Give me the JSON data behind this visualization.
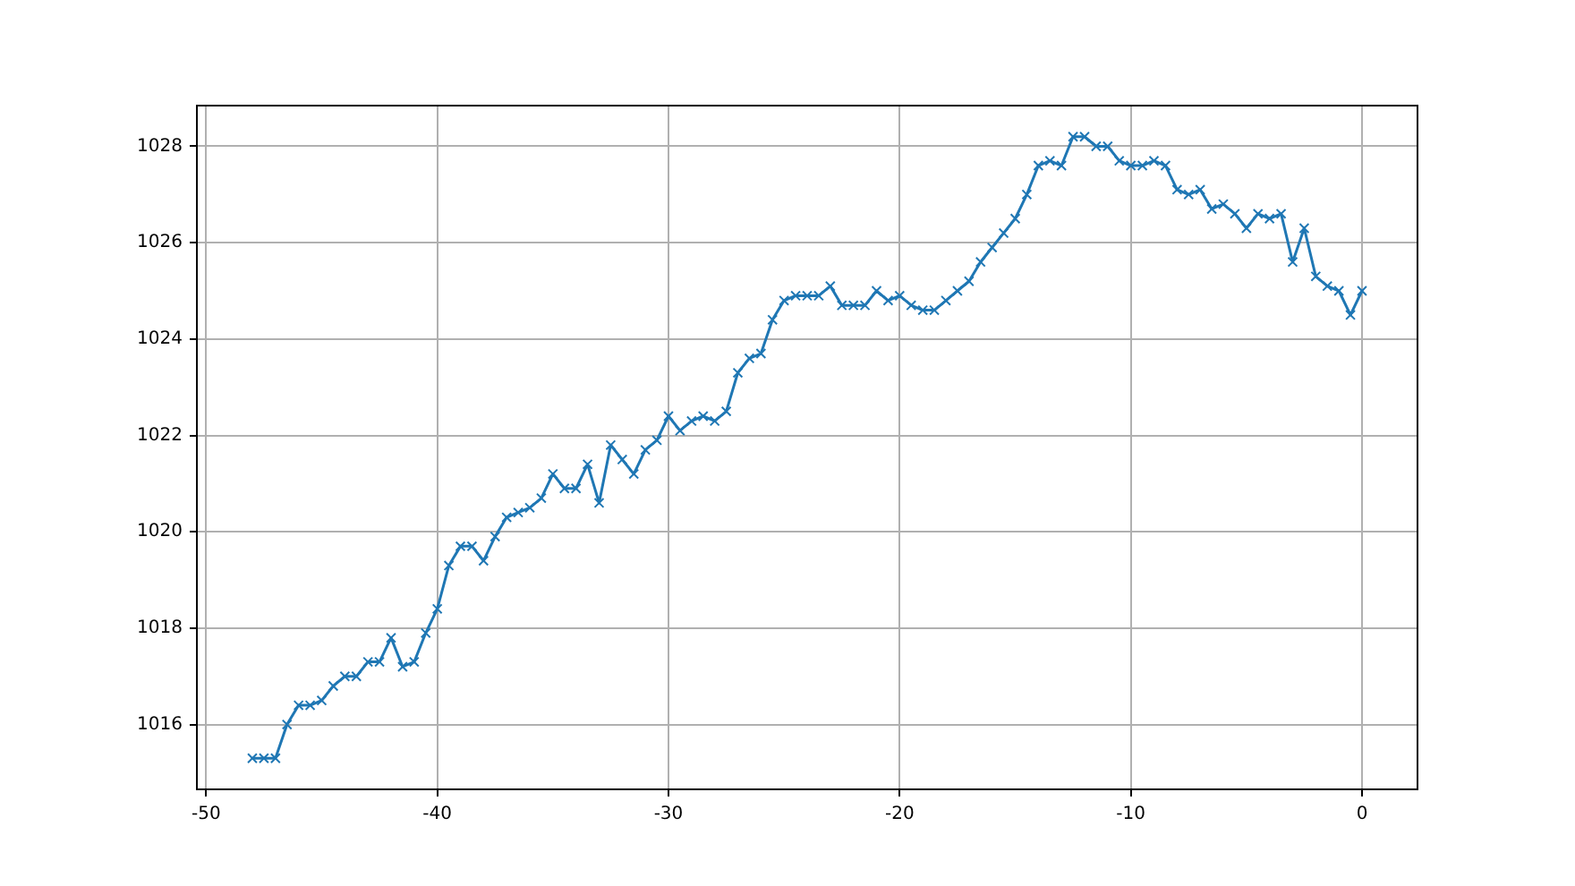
{
  "chart_data": {
    "type": "line",
    "x": [
      -48,
      -47.5,
      -47,
      -46.5,
      -46,
      -45.5,
      -45,
      -44.5,
      -44,
      -43.5,
      -43,
      -42.5,
      -42,
      -41.5,
      -41,
      -40.5,
      -40,
      -39.5,
      -39,
      -38.5,
      -38,
      -37.5,
      -37,
      -36.5,
      -36,
      -35.5,
      -35,
      -34.5,
      -34,
      -33.5,
      -33,
      -32.5,
      -32,
      -31.5,
      -31,
      -30.5,
      -30,
      -29.5,
      -29,
      -28.5,
      -28,
      -27.5,
      -27,
      -26.5,
      -26,
      -25.5,
      -25,
      -24.5,
      -24,
      -23.5,
      -23,
      -22.5,
      -22,
      -21.5,
      -21,
      -20.5,
      -20,
      -19.5,
      -19,
      -18.5,
      -18,
      -17.5,
      -17,
      -16.5,
      -16,
      -15.5,
      -15,
      -14.5,
      -14,
      -13.5,
      -13,
      -12.5,
      -12,
      -11.5,
      -11,
      -10.5,
      -10,
      -9.5,
      -9,
      -8.5,
      -8,
      -7.5,
      -7,
      -6.5,
      -6,
      -5.5,
      -5,
      -4.5,
      -4,
      -3.5,
      -3,
      -2.5,
      -2,
      -1.5,
      -1,
      -0.5,
      0
    ],
    "series": [
      {
        "color": "#1f77b4",
        "values": [
          1015.3,
          1015.3,
          1015.3,
          1016.0,
          1016.4,
          1016.4,
          1016.5,
          1016.8,
          1017.0,
          1017.0,
          1017.3,
          1017.3,
          1017.8,
          1017.2,
          1017.3,
          1017.9,
          1018.4,
          1019.3,
          1019.7,
          1019.7,
          1019.4,
          1019.9,
          1020.3,
          1020.4,
          1020.5,
          1020.7,
          1021.2,
          1020.9,
          1020.9,
          1021.4,
          1020.6,
          1021.8,
          1021.5,
          1021.2,
          1021.7,
          1021.9,
          1022.4,
          1022.1,
          1022.3,
          1022.4,
          1022.3,
          1022.5,
          1023.3,
          1023.6,
          1023.7,
          1024.4,
          1024.8,
          1024.9,
          1024.9,
          1024.9,
          1025.1,
          1024.7,
          1024.7,
          1024.7,
          1025.0,
          1024.8,
          1024.9,
          1024.7,
          1024.6,
          1024.6,
          1024.8,
          1025.0,
          1025.2,
          1025.6,
          1025.9,
          1026.2,
          1026.5,
          1027.0,
          1027.6,
          1027.7,
          1027.6,
          1028.2,
          1028.2,
          1028.0,
          1028.0,
          1027.7,
          1027.6,
          1027.6,
          1027.7,
          1027.6,
          1027.1,
          1027.0,
          1027.1,
          1026.7,
          1026.8,
          1026.6,
          1026.3,
          1026.6,
          1026.5,
          1026.6,
          1025.6,
          1026.3,
          1025.3,
          1025.1,
          1025.0,
          1024.5,
          1025.0
        ]
      }
    ],
    "xlim": [
      -50.4,
      2.4
    ],
    "ylim": [
      1014.655,
      1028.845
    ],
    "xticks": [
      -50,
      -40,
      -30,
      -20,
      -10,
      0
    ],
    "yticks": [
      1016,
      1018,
      1020,
      1022,
      1024,
      1026,
      1028
    ],
    "grid": true,
    "marker": "cross",
    "line_style": "solid",
    "legend": false
  }
}
